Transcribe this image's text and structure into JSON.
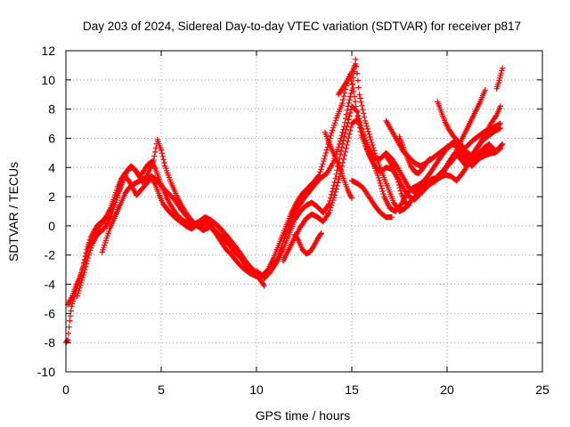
{
  "chart_data": {
    "type": "scatter",
    "title": "Day 203 of 2024, Sidereal Day-to-day VTEC variation (SDTVAR) for receiver p817",
    "xlabel": "GPS time / hours",
    "ylabel": "SDTVAR / TECUs",
    "xlim": [
      0,
      25
    ],
    "ylim": [
      -10,
      12
    ],
    "xticks": [
      0,
      5,
      10,
      15,
      20,
      25
    ],
    "yticks": [
      -10,
      -8,
      -6,
      -4,
      -2,
      0,
      2,
      4,
      6,
      8,
      10,
      12
    ],
    "xtick_labels": [
      "0",
      "5",
      "10",
      "15",
      "20",
      "25"
    ],
    "ytick_labels": [
      "-10",
      "-8",
      "-6",
      "-4",
      "-2",
      "0",
      "2",
      "4",
      "6",
      "8",
      "10",
      "12"
    ],
    "grid": true,
    "marker": "+",
    "color": "#ff0000",
    "series": [
      {
        "x": [
          0.0,
          0.1,
          0.2,
          0.3,
          0.4,
          0.5,
          0.7,
          0.9,
          1.1,
          1.3,
          1.5,
          1.7,
          1.9,
          2.1,
          2.3,
          2.5,
          2.7,
          2.9,
          3.1,
          3.3,
          3.5,
          3.7,
          3.9,
          4.1,
          4.3,
          4.5,
          4.7,
          4.9,
          5.1,
          5.3,
          5.5,
          5.8,
          6.1,
          6.4,
          6.7,
          7.0,
          7.3,
          7.6,
          7.9,
          8.2,
          8.5,
          8.8,
          9.1,
          9.4,
          9.7,
          10.0,
          10.2,
          10.4
        ],
        "y": [
          -8.0,
          -7.8,
          -6.5,
          -5.5,
          -5.0,
          -4.6,
          -3.8,
          -2.8,
          -1.6,
          -0.8,
          -0.3,
          0.1,
          0.3,
          0.6,
          1.1,
          1.8,
          2.6,
          3.2,
          3.6,
          3.9,
          4.0,
          3.7,
          3.4,
          3.8,
          4.2,
          4.4,
          3.9,
          3.2,
          2.5,
          1.9,
          1.4,
          0.8,
          0.4,
          0.2,
          0.1,
          0.3,
          0.6,
          0.4,
          0.1,
          -0.3,
          -0.9,
          -1.4,
          -1.8,
          -2.4,
          -2.9,
          -3.3,
          -3.7,
          -4.1
        ]
      },
      {
        "x": [
          0.1,
          0.3,
          0.5,
          0.7,
          0.9,
          1.1,
          1.3,
          1.5,
          1.7,
          1.9,
          2.1,
          2.3,
          2.5,
          2.7,
          2.9,
          3.1,
          3.3,
          3.5,
          3.7,
          3.9,
          4.1,
          4.3,
          4.5,
          4.7,
          4.9,
          5.1,
          5.4,
          5.7,
          6.0,
          6.3,
          6.6,
          6.9,
          7.2,
          7.5,
          7.8,
          8.1,
          8.4,
          8.7,
          9.0,
          9.3,
          9.6,
          9.9,
          10.2
        ],
        "y": [
          -5.4,
          -4.9,
          -4.2,
          -3.6,
          -2.9,
          -1.9,
          -1.0,
          -0.5,
          -0.1,
          0.2,
          0.5,
          0.9,
          1.5,
          2.2,
          2.9,
          3.4,
          3.1,
          2.6,
          2.1,
          2.4,
          2.7,
          3.0,
          3.3,
          2.8,
          2.1,
          1.5,
          1.0,
          0.6,
          0.3,
          0.0,
          -0.2,
          0.1,
          0.4,
          0.1,
          -0.4,
          -1.0,
          -1.6,
          -2.0,
          -2.5,
          -2.9,
          -3.2,
          -3.4,
          -3.6
        ]
      },
      {
        "x": [
          0.6,
          0.8,
          1.0,
          1.2,
          1.4,
          1.6,
          1.8,
          2.0,
          2.2,
          2.4,
          2.6,
          2.8,
          3.0,
          3.2,
          3.4,
          3.6,
          3.8,
          4.0,
          4.2,
          4.4,
          4.6,
          4.8,
          5.0,
          5.2,
          5.5,
          5.8,
          6.1,
          6.4,
          6.7,
          7.0,
          7.3,
          7.6,
          7.9,
          8.2,
          8.5,
          8.8,
          9.1,
          9.4,
          9.7,
          10.0
        ],
        "y": [
          -4.8,
          -3.9,
          -3.0,
          -2.0,
          -1.2,
          -0.7,
          -0.4,
          -0.2,
          0.2,
          0.8,
          1.6,
          2.4,
          3.1,
          3.7,
          4.1,
          3.9,
          3.5,
          3.0,
          3.3,
          3.9,
          4.5,
          5.9,
          5.2,
          4.1,
          3.0,
          2.1,
          1.3,
          0.7,
          0.2,
          -0.1,
          0.2,
          0.0,
          -0.4,
          -0.8,
          -1.2,
          -1.7,
          -2.1,
          -2.6,
          -3.0,
          -3.3
        ]
      },
      {
        "x": [
          1.9,
          2.1,
          2.3,
          2.5,
          2.7,
          2.9,
          3.1,
          3.3,
          3.6,
          3.9,
          4.2,
          4.5,
          4.8,
          5.1,
          5.4,
          5.7,
          6.0,
          6.3,
          6.6,
          6.9,
          7.2,
          7.5,
          7.8,
          8.1,
          8.4,
          8.7,
          9.0,
          9.3,
          9.6,
          9.9
        ],
        "y": [
          -1.8,
          -1.0,
          -0.2,
          0.4,
          1.0,
          1.6,
          2.2,
          2.6,
          2.9,
          3.1,
          3.3,
          3.4,
          3.1,
          2.6,
          2.2,
          1.8,
          1.2,
          0.7,
          0.3,
          0.0,
          -0.3,
          -0.1,
          0.2,
          -0.2,
          -0.6,
          -1.1,
          -1.6,
          -2.2,
          -2.7,
          -3.1
        ]
      },
      {
        "x": [
          10.0,
          10.3,
          10.6,
          10.9,
          11.2,
          11.5,
          11.8,
          12.1,
          12.4,
          12.7,
          13.0,
          13.3,
          13.6,
          13.9,
          14.2,
          14.5,
          14.7,
          14.9,
          15.1,
          15.3,
          15.5,
          15.8,
          16.1,
          16.4,
          16.7,
          17.0,
          17.3,
          17.6,
          17.9,
          18.2,
          18.5,
          18.8,
          19.1,
          19.4,
          19.7,
          20.0,
          20.3,
          20.6,
          20.9,
          21.2,
          21.5,
          21.8,
          22.1,
          22.4,
          22.7,
          22.9
        ],
        "y": [
          -3.1,
          -3.4,
          -3.0,
          -2.2,
          -1.2,
          -0.2,
          0.8,
          1.6,
          2.2,
          2.6,
          3.0,
          3.5,
          4.8,
          6.2,
          7.4,
          8.4,
          9.6,
          10.4,
          9.2,
          7.5,
          6.2,
          5.2,
          4.4,
          3.3,
          2.0,
          1.2,
          1.0,
          1.5,
          2.2,
          2.6,
          2.8,
          3.1,
          3.6,
          4.2,
          4.8,
          5.3,
          5.6,
          5.3,
          4.9,
          4.6,
          4.5,
          4.7,
          4.9,
          5.0,
          5.3,
          5.6
        ]
      },
      {
        "x": [
          10.4,
          10.7,
          11.0,
          11.3,
          11.6,
          11.9,
          12.2,
          12.5,
          12.8,
          13.1,
          13.4,
          13.7,
          14.0,
          14.3,
          14.6,
          14.8,
          15.0,
          15.2,
          15.4,
          15.7,
          16.0,
          16.3,
          16.6,
          16.9,
          17.2,
          17.5,
          17.8,
          18.1,
          18.4,
          18.7,
          19.0,
          19.3,
          19.6,
          19.9,
          20.2,
          20.5,
          20.8,
          21.1,
          21.4,
          21.7,
          22.0,
          22.3,
          22.6,
          22.8
        ],
        "y": [
          -3.6,
          -3.2,
          -2.5,
          -1.5,
          -0.4,
          0.6,
          1.3,
          1.9,
          2.4,
          2.9,
          3.3,
          3.6,
          4.3,
          5.4,
          6.8,
          8.2,
          9.3,
          11.4,
          9.0,
          7.2,
          5.9,
          4.6,
          3.6,
          2.6,
          1.6,
          1.0,
          1.2,
          1.7,
          2.1,
          2.5,
          2.8,
          3.0,
          3.3,
          3.5,
          3.4,
          3.1,
          3.6,
          4.2,
          5.0,
          5.6,
          6.3,
          7.0,
          7.6,
          8.2
        ]
      },
      {
        "x": [
          10.8,
          11.1,
          11.4,
          11.7,
          12.0,
          12.3,
          12.6,
          12.9,
          13.2,
          13.5,
          13.8,
          14.1,
          14.4,
          14.7,
          15.0,
          15.3,
          15.6,
          15.9,
          16.2,
          16.5,
          16.8,
          17.1,
          17.4,
          17.7,
          18.0,
          18.3,
          18.6,
          18.9,
          19.2,
          19.5,
          19.8,
          20.1,
          20.4,
          20.7,
          21.0,
          21.3,
          21.6,
          21.9,
          22.2,
          22.5,
          22.8
        ],
        "y": [
          -3.0,
          -2.4,
          -1.6,
          -0.6,
          0.4,
          1.0,
          1.4,
          1.6,
          1.3,
          0.9,
          1.5,
          3.0,
          4.9,
          6.6,
          8.2,
          7.8,
          6.2,
          4.9,
          4.1,
          3.7,
          4.0,
          3.9,
          3.3,
          2.6,
          2.0,
          1.8,
          2.2,
          2.6,
          3.0,
          3.4,
          3.8,
          4.2,
          4.7,
          5.1,
          5.4,
          5.8,
          6.1,
          6.4,
          6.6,
          6.8,
          7.0
        ]
      },
      {
        "x": [
          11.4,
          11.7,
          12.0,
          12.3,
          12.6,
          12.9,
          13.2,
          13.5,
          13.8,
          14.1,
          14.4,
          14.7,
          15.0,
          15.3,
          15.6,
          15.9,
          16.2,
          16.5,
          16.8,
          17.1,
          17.4,
          17.7,
          18.0,
          18.3,
          18.6,
          18.9,
          19.2,
          19.5,
          19.8,
          20.1,
          20.4,
          20.7,
          21.0,
          21.3,
          21.6,
          21.9,
          22.2,
          22.5,
          22.8
        ],
        "y": [
          -2.4,
          -1.6,
          -0.8,
          -0.1,
          0.5,
          0.8,
          0.6,
          0.3,
          0.9,
          2.1,
          3.6,
          5.3,
          7.0,
          7.3,
          6.3,
          5.3,
          4.6,
          4.6,
          5.0,
          4.6,
          4.0,
          3.3,
          2.6,
          2.3,
          2.6,
          2.9,
          3.2,
          3.3,
          3.6,
          4.4,
          5.0,
          4.6,
          4.1,
          4.8,
          5.4,
          5.9,
          6.2,
          6.5,
          6.7
        ]
      },
      {
        "x": [
          12.0,
          12.2,
          12.4,
          12.6,
          12.8,
          13.0,
          13.2,
          13.4
        ],
        "y": [
          -0.6,
          -1.0,
          -1.6,
          -1.9,
          -1.8,
          -1.4,
          -0.9,
          -0.5
        ]
      },
      {
        "x": [
          13.6,
          13.8,
          14.0,
          14.2,
          14.4,
          14.6,
          14.8,
          15.0
        ],
        "y": [
          6.4,
          5.7,
          5.1,
          4.5,
          3.9,
          3.1,
          2.4,
          1.9
        ]
      },
      {
        "x": [
          15.0,
          15.3,
          15.6,
          15.9,
          16.2,
          16.5,
          16.8,
          17.1
        ],
        "y": [
          3.1,
          2.9,
          2.6,
          2.0,
          1.4,
          0.9,
          0.6,
          0.6
        ]
      },
      {
        "x": [
          16.8,
          17.0,
          17.2,
          17.4,
          17.6,
          17.8,
          18.0
        ],
        "y": [
          4.8,
          4.4,
          4.0,
          3.2,
          2.2,
          1.6,
          1.4
        ]
      },
      {
        "x": [
          16.8,
          17.1,
          17.4,
          17.7,
          18.0,
          18.3,
          18.6,
          18.9,
          19.2,
          19.5,
          19.8,
          20.1,
          20.4,
          20.7,
          21.0,
          21.3,
          21.6,
          21.9,
          22.2,
          22.5
        ],
        "y": [
          7.2,
          6.5,
          5.8,
          5.1,
          4.7,
          4.3,
          4.1,
          4.3,
          4.6,
          4.9,
          5.2,
          5.5,
          5.8,
          5.6,
          5.1,
          4.8,
          4.9,
          5.3,
          5.6,
          5.2
        ]
      },
      {
        "x": [
          17.5,
          17.7,
          17.9,
          18.1,
          18.3,
          18.5,
          18.7,
          18.9,
          19.1
        ],
        "y": [
          6.1,
          5.4,
          4.7,
          4.1,
          3.7,
          3.6,
          3.9,
          4.3,
          4.6
        ]
      },
      {
        "x": [
          18.3,
          18.6,
          18.9,
          19.2,
          19.5,
          19.8,
          20.1,
          20.4,
          20.7,
          21.0,
          21.3,
          21.6,
          21.9,
          22.2,
          22.5,
          22.8
        ],
        "y": [
          2.4,
          2.6,
          2.8,
          3.0,
          3.4,
          3.8,
          4.3,
          4.8,
          5.0,
          4.6,
          4.1,
          4.5,
          5.0,
          5.2,
          5.0,
          5.3
        ]
      },
      {
        "x": [
          19.5,
          19.7,
          19.9,
          20.1,
          20.3,
          20.5,
          20.7,
          20.9
        ],
        "y": [
          8.5,
          7.8,
          7.1,
          6.6,
          6.2,
          5.9,
          5.6,
          5.2
        ]
      },
      {
        "x": [
          20.5,
          20.8,
          21.1,
          21.4,
          21.7,
          22.0
        ],
        "y": [
          5.2,
          6.0,
          6.8,
          7.6,
          8.4,
          9.3
        ]
      },
      {
        "x": [
          22.6,
          22.7,
          22.8,
          22.9
        ],
        "y": [
          9.4,
          9.8,
          10.3,
          10.8
        ]
      },
      {
        "x": [
          14.3,
          14.6,
          14.9,
          15.2
        ],
        "y": [
          9.0,
          9.6,
          10.2,
          11.1
        ]
      }
    ]
  }
}
